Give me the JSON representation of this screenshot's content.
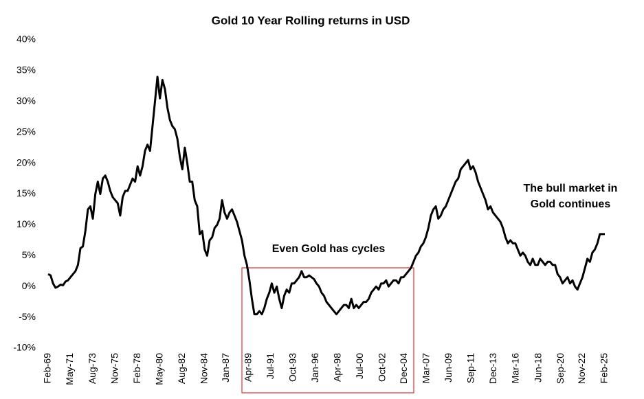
{
  "chart_data": {
    "type": "line",
    "title": "Gold 10 Year Rolling returns in USD",
    "x": [
      "Feb-69",
      "May-69",
      "Aug-69",
      "Nov-69",
      "Feb-70",
      "May-70",
      "Aug-70",
      "Nov-70",
      "Feb-71",
      "May-71",
      "Aug-71",
      "Nov-71",
      "Feb-72",
      "May-72",
      "Aug-72",
      "Nov-72",
      "Feb-73",
      "May-73",
      "Aug-73",
      "Nov-73",
      "Feb-74",
      "May-74",
      "Aug-74",
      "Nov-74",
      "Feb-75",
      "May-75",
      "Aug-75",
      "Nov-75",
      "Feb-76",
      "May-76",
      "Aug-76",
      "Nov-76",
      "Feb-77",
      "May-77",
      "Aug-77",
      "Nov-77",
      "Feb-78",
      "May-78",
      "Aug-78",
      "Nov-78",
      "Feb-79",
      "May-79",
      "Aug-79",
      "Nov-79",
      "Feb-80",
      "May-80",
      "Aug-80",
      "Nov-80",
      "Feb-81",
      "May-81",
      "Aug-81",
      "Nov-81",
      "Feb-82",
      "May-82",
      "Aug-82",
      "Nov-82",
      "Feb-83",
      "May-83",
      "Aug-83",
      "Nov-83",
      "Feb-84",
      "May-84",
      "Aug-84",
      "Nov-84",
      "Feb-85",
      "May-85",
      "Aug-85",
      "Nov-85",
      "Feb-86",
      "May-86",
      "Aug-86",
      "Nov-86",
      "Feb-87",
      "May-87",
      "Aug-87",
      "Nov-87",
      "Feb-88",
      "May-88",
      "Aug-88",
      "Nov-88",
      "Feb-89",
      "May-89",
      "Aug-89",
      "Nov-89",
      "Feb-90",
      "May-90",
      "Aug-90",
      "Nov-90",
      "Feb-91",
      "May-91",
      "Aug-91",
      "Nov-91",
      "Feb-92",
      "May-92",
      "Aug-92",
      "Nov-92",
      "Feb-93",
      "May-93",
      "Aug-93",
      "Nov-93",
      "Feb-94",
      "May-94",
      "Aug-94",
      "Nov-94",
      "Feb-95",
      "May-95",
      "Aug-95",
      "Nov-95",
      "Feb-96",
      "May-96",
      "Aug-96",
      "Nov-96",
      "Feb-97",
      "May-97",
      "Aug-97",
      "Nov-97",
      "Feb-98",
      "May-98",
      "Aug-98",
      "Nov-98",
      "Feb-99",
      "May-99",
      "Aug-99",
      "Nov-99",
      "Feb-00",
      "May-00",
      "Aug-00",
      "Nov-00",
      "Feb-01",
      "May-01",
      "Aug-01",
      "Nov-01",
      "Feb-02",
      "May-02",
      "Aug-02",
      "Nov-02",
      "Feb-03",
      "May-03",
      "Aug-03",
      "Nov-03",
      "Feb-04",
      "May-04",
      "Aug-04",
      "Nov-04",
      "Feb-05",
      "May-05",
      "Aug-05",
      "Nov-05",
      "Feb-06",
      "May-06",
      "Aug-06",
      "Nov-06",
      "Feb-07",
      "May-07",
      "Aug-07",
      "Nov-07",
      "Feb-08",
      "May-08",
      "Aug-08",
      "Nov-08",
      "Feb-09",
      "May-09",
      "Aug-09",
      "Nov-09",
      "Feb-10",
      "May-10",
      "Aug-10",
      "Nov-10",
      "Feb-11",
      "May-11",
      "Aug-11",
      "Nov-11",
      "Feb-12",
      "May-12",
      "Aug-12",
      "Nov-12",
      "Feb-13",
      "May-13",
      "Aug-13",
      "Nov-13",
      "Feb-14",
      "May-14",
      "Aug-14",
      "Nov-14",
      "Feb-15",
      "May-15",
      "Aug-15",
      "Nov-15",
      "Feb-16",
      "May-16",
      "Aug-16",
      "Nov-16",
      "Feb-17",
      "May-17",
      "Aug-17",
      "Nov-17",
      "Feb-18",
      "May-18",
      "Aug-18",
      "Nov-18",
      "Feb-19",
      "May-19",
      "Aug-19",
      "Nov-19",
      "Feb-20",
      "May-20",
      "Aug-20",
      "Nov-20",
      "Feb-21",
      "May-21",
      "Aug-21",
      "Nov-21",
      "Feb-22",
      "May-22",
      "Aug-22",
      "Nov-22",
      "Feb-23",
      "May-23",
      "Aug-23",
      "Nov-23",
      "Feb-24",
      "May-24",
      "Aug-24",
      "Nov-24",
      "Feb-25"
    ],
    "series": [
      {
        "color": "#000000",
        "values": [
          2,
          1.8,
          0.5,
          -0.2,
          0,
          0.3,
          0.2,
          0.8,
          1,
          1.5,
          2,
          2.5,
          3.5,
          6.2,
          6.5,
          9,
          12.5,
          13,
          11,
          15,
          17,
          15,
          17.5,
          18,
          17,
          15.5,
          14.5,
          14,
          13.5,
          11.5,
          14.5,
          15.5,
          15.5,
          16.5,
          17.5,
          17,
          19.5,
          18,
          19.5,
          22,
          23,
          22,
          26,
          30,
          34,
          30.5,
          33.5,
          32,
          29,
          27,
          26,
          25.5,
          24,
          21,
          19,
          22.5,
          20,
          17,
          17,
          14,
          13,
          8.5,
          9,
          6,
          5,
          7.5,
          8,
          9.5,
          10,
          11,
          14,
          12,
          11,
          12,
          12.5,
          11.5,
          10.5,
          9,
          7.5,
          5,
          3.5,
          1,
          -2,
          -4.5,
          -4.5,
          -4,
          -4.5,
          -3.5,
          -2,
          -1,
          0.5,
          -1,
          0,
          -2,
          -3.5,
          -1.5,
          -0.5,
          -1,
          0.5,
          0.5,
          1,
          1.5,
          2.5,
          1.5,
          1.5,
          1.8,
          1.5,
          1.2,
          0.5,
          0,
          -1,
          -1.5,
          -2.5,
          -3,
          -3.5,
          -4,
          -4.5,
          -4,
          -3.5,
          -3,
          -3,
          -3.5,
          -2,
          -3.5,
          -3,
          -3.5,
          -3,
          -2.5,
          -2.5,
          -2,
          -1,
          -0.5,
          0,
          -0.5,
          0.5,
          0.5,
          1,
          0,
          0.5,
          1,
          1,
          0.5,
          1.5,
          1.5,
          2,
          2.5,
          3,
          4,
          5,
          5.5,
          6.5,
          7,
          8,
          9.5,
          11.5,
          12.5,
          13,
          11,
          11.5,
          12.5,
          13,
          14,
          15,
          16,
          17,
          17.5,
          19,
          19.5,
          20,
          20.5,
          19,
          19.5,
          18.5,
          17,
          16,
          15,
          14,
          12.5,
          13,
          12,
          11.5,
          11,
          10.5,
          9.5,
          8,
          7,
          7.5,
          7,
          7,
          6,
          5,
          5.5,
          5,
          4,
          3.5,
          4.5,
          3.5,
          3.5,
          4.5,
          4,
          3.5,
          4,
          4,
          3.5,
          3.5,
          2,
          1.5,
          0.5,
          1,
          1.5,
          0.5,
          1,
          0,
          -0.5,
          0.5,
          1.5,
          3,
          4.5,
          4,
          5.5,
          6,
          7,
          8.5,
          8.5,
          8.5
        ]
      }
    ],
    "xlim": [
      "Feb-69",
      "Feb-25"
    ],
    "xticks": [
      "Feb-69",
      "May-71",
      "Aug-73",
      "Nov-75",
      "Feb-78",
      "May-80",
      "Aug-82",
      "Nov-84",
      "Jan-87",
      "Apr-89",
      "Jul-91",
      "Oct-93",
      "Jan-96",
      "Apr-98",
      "Jul-00",
      "Oct-02",
      "Dec-04",
      "Mar-07",
      "Jun-09",
      "Sep-11",
      "Dec-13",
      "Mar-16",
      "Jun-18",
      "Sep-20",
      "Nov-22",
      "Feb-25"
    ],
    "ylim": [
      -10,
      40
    ],
    "yticks": [
      {
        "value": -10,
        "label": "-10%"
      },
      {
        "value": -5,
        "label": "-5%"
      },
      {
        "value": 0,
        "label": "0%"
      },
      {
        "value": 5,
        "label": "5%"
      },
      {
        "value": 10,
        "label": "10%"
      },
      {
        "value": 15,
        "label": "15%"
      },
      {
        "value": 20,
        "label": "20%"
      },
      {
        "value": 25,
        "label": "25%"
      },
      {
        "value": 30,
        "label": "30%"
      },
      {
        "value": 35,
        "label": "35%"
      },
      {
        "value": 40,
        "label": "40%"
      }
    ],
    "annotations": [
      [
        "Even Gold has cycles"
      ],
      [
        "The bull market in",
        "Gold continues"
      ]
    ]
  }
}
